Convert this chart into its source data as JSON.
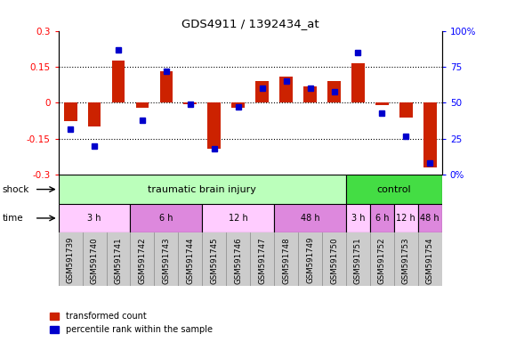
{
  "title": "GDS4911 / 1392434_at",
  "samples": [
    "GSM591739",
    "GSM591740",
    "GSM591741",
    "GSM591742",
    "GSM591743",
    "GSM591744",
    "GSM591745",
    "GSM591746",
    "GSM591747",
    "GSM591748",
    "GSM591749",
    "GSM591750",
    "GSM591751",
    "GSM591752",
    "GSM591753",
    "GSM591754"
  ],
  "red_bars": [
    -0.075,
    -0.1,
    0.175,
    -0.02,
    0.13,
    -0.005,
    -0.19,
    -0.02,
    0.09,
    0.11,
    0.07,
    0.09,
    0.165,
    -0.01,
    -0.06,
    -0.27
  ],
  "blue_squares": [
    32,
    20,
    87,
    38,
    72,
    49,
    18,
    47,
    60,
    65,
    60,
    58,
    85,
    43,
    27,
    8
  ],
  "ylim_left": [
    -0.3,
    0.3
  ],
  "ylim_right": [
    0,
    100
  ],
  "yticks_left": [
    -0.3,
    -0.15,
    0.0,
    0.15,
    0.3
  ],
  "yticks_right": [
    0,
    25,
    50,
    75,
    100
  ],
  "bar_color": "#cc2200",
  "square_color": "#0000cc",
  "bg_color": "#ffffff",
  "legend_red": "transformed count",
  "legend_blue": "percentile rank within the sample",
  "shock_tbi_color": "#bbffbb",
  "shock_ctrl_color": "#44dd44",
  "time_light": "#ffccff",
  "time_dark": "#dd88dd",
  "sample_bg": "#cccccc",
  "sample_border": "#888888"
}
